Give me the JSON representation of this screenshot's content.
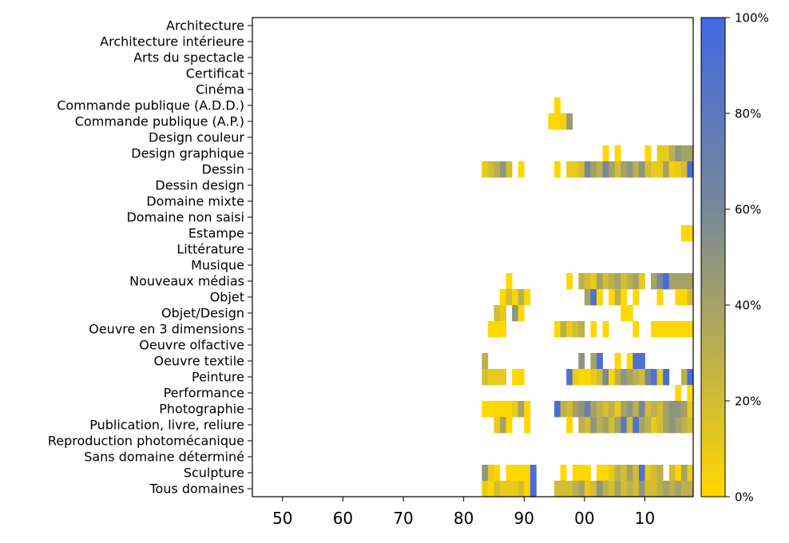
{
  "chart_data": {
    "type": "heatmap",
    "xlim": [
      1945,
      2018
    ],
    "x_tick_values": [
      1950,
      1960,
      1970,
      1980,
      1990,
      2000,
      2010
    ],
    "x_tick_labels": [
      "50",
      "60",
      "70",
      "80",
      "90",
      "00",
      "10"
    ],
    "categories": [
      "Architecture",
      "Architecture intérieure",
      "Arts du spectacle",
      "Certificat",
      "Cinéma",
      "Commande publique (A.D.D.)",
      "Commande publique (A.P.)",
      "Design couleur",
      "Design graphique",
      "Dessin",
      "Dessin design",
      "Domaine mixte",
      "Domaine non saisi",
      "Estampe",
      "Littérature",
      "Musique",
      "Nouveaux médias",
      "Objet",
      "Objet/Design",
      "Oeuvre en 3 dimensions",
      "Oeuvre olfactive",
      "Oeuvre textile",
      "Peinture",
      "Performance",
      "Photographie",
      "Publication, livre, reliure",
      "Reproduction photomécanique",
      "Sans domaine déterminé",
      "Sculpture",
      "Tous domaines"
    ],
    "colorbar": {
      "min_color": "#FFD700",
      "mid_color": "#778899",
      "max_color": "#4169E1",
      "tick_values": [
        0,
        20,
        40,
        60,
        80,
        100
      ],
      "tick_labels": [
        "0%",
        "20%",
        "40%",
        "60%",
        "80%",
        "100%"
      ]
    },
    "cells": {
      "Commande publique (A.D.D.)": [
        [
          1995,
          0
        ]
      ],
      "Commande publique (A.P.)": [
        [
          1994,
          0
        ],
        [
          1995,
          0
        ],
        [
          1996,
          5
        ],
        [
          1997,
          45
        ]
      ],
      "Design graphique": [
        [
          2003,
          0
        ],
        [
          2005,
          0
        ],
        [
          2010,
          0
        ],
        [
          2012,
          10
        ],
        [
          2013,
          10
        ],
        [
          2014,
          30
        ],
        [
          2015,
          50
        ],
        [
          2016,
          40
        ],
        [
          2017,
          40
        ]
      ],
      "Dessin": [
        [
          1983,
          10
        ],
        [
          1984,
          20
        ],
        [
          1985,
          30
        ],
        [
          1986,
          50
        ],
        [
          1987,
          20
        ],
        [
          1989,
          0
        ],
        [
          1995,
          0
        ],
        [
          1997,
          10
        ],
        [
          1998,
          10
        ],
        [
          1999,
          20
        ],
        [
          2000,
          60
        ],
        [
          2001,
          40
        ],
        [
          2002,
          30
        ],
        [
          2003,
          60
        ],
        [
          2004,
          40
        ],
        [
          2005,
          20
        ],
        [
          2006,
          40
        ],
        [
          2007,
          50
        ],
        [
          2008,
          30
        ],
        [
          2009,
          50
        ],
        [
          2010,
          20
        ],
        [
          2011,
          10
        ],
        [
          2012,
          10
        ],
        [
          2013,
          40
        ],
        [
          2014,
          5
        ],
        [
          2015,
          10
        ],
        [
          2016,
          20
        ],
        [
          2017,
          95
        ]
      ],
      "Estampe": [
        [
          2016,
          0
        ],
        [
          2017,
          0
        ]
      ],
      "Nouveaux médias": [
        [
          1987,
          0
        ],
        [
          1997,
          0
        ],
        [
          1999,
          30
        ],
        [
          2000,
          20
        ],
        [
          2001,
          10
        ],
        [
          2002,
          40
        ],
        [
          2003,
          20
        ],
        [
          2004,
          30
        ],
        [
          2005,
          40
        ],
        [
          2006,
          20
        ],
        [
          2007,
          30
        ],
        [
          2008,
          40
        ],
        [
          2009,
          10
        ],
        [
          2011,
          40
        ],
        [
          2012,
          60
        ],
        [
          2013,
          95
        ],
        [
          2014,
          40
        ],
        [
          2015,
          40
        ],
        [
          2016,
          40
        ],
        [
          2017,
          40
        ]
      ],
      "Objet": [
        [
          1986,
          0
        ],
        [
          1987,
          20
        ],
        [
          1988,
          0
        ],
        [
          1989,
          30
        ],
        [
          1990,
          0
        ],
        [
          2000,
          40
        ],
        [
          2001,
          90
        ],
        [
          2002,
          0
        ],
        [
          2004,
          0
        ],
        [
          2005,
          30
        ],
        [
          2006,
          0
        ],
        [
          2008,
          0
        ],
        [
          2012,
          0
        ],
        [
          2015,
          0
        ],
        [
          2016,
          0
        ],
        [
          2017,
          20
        ]
      ],
      "Objet/Design": [
        [
          1985,
          20
        ],
        [
          1986,
          10
        ],
        [
          1988,
          50
        ],
        [
          1989,
          0
        ],
        [
          2006,
          0
        ],
        [
          2007,
          0
        ]
      ],
      "Oeuvre en 3 dimensions": [
        [
          1984,
          0
        ],
        [
          1985,
          0
        ],
        [
          1986,
          0
        ],
        [
          1995,
          0
        ],
        [
          1996,
          30
        ],
        [
          1997,
          10
        ],
        [
          1998,
          20
        ],
        [
          1999,
          30
        ],
        [
          2001,
          0
        ],
        [
          2003,
          0
        ],
        [
          2008,
          0
        ],
        [
          2011,
          0
        ],
        [
          2012,
          0
        ],
        [
          2013,
          0
        ],
        [
          2014,
          0
        ],
        [
          2015,
          0
        ],
        [
          2016,
          0
        ],
        [
          2017,
          0
        ]
      ],
      "Oeuvre textile": [
        [
          1983,
          30
        ],
        [
          1999,
          50
        ],
        [
          2001,
          40
        ],
        [
          2002,
          90
        ],
        [
          2005,
          0
        ],
        [
          2007,
          0
        ],
        [
          2008,
          90
        ],
        [
          2009,
          90
        ]
      ],
      "Peinture": [
        [
          1983,
          20
        ],
        [
          1984,
          10
        ],
        [
          1985,
          10
        ],
        [
          1986,
          10
        ],
        [
          1988,
          0
        ],
        [
          1989,
          0
        ],
        [
          1997,
          90
        ],
        [
          1998,
          10
        ],
        [
          1999,
          0
        ],
        [
          2000,
          0
        ],
        [
          2001,
          10
        ],
        [
          2002,
          20
        ],
        [
          2003,
          60
        ],
        [
          2004,
          0
        ],
        [
          2005,
          30
        ],
        [
          2006,
          50
        ],
        [
          2007,
          40
        ],
        [
          2008,
          30
        ],
        [
          2009,
          20
        ],
        [
          2010,
          60
        ],
        [
          2011,
          90
        ],
        [
          2012,
          10
        ],
        [
          2013,
          95
        ],
        [
          2016,
          30
        ],
        [
          2017,
          95
        ]
      ],
      "Performance": [
        [
          2015,
          0
        ],
        [
          2017,
          0
        ]
      ],
      "Photographie": [
        [
          1983,
          0
        ],
        [
          1984,
          0
        ],
        [
          1985,
          0
        ],
        [
          1986,
          0
        ],
        [
          1987,
          0
        ],
        [
          1988,
          10
        ],
        [
          1989,
          40
        ],
        [
          1990,
          0
        ],
        [
          1995,
          95
        ],
        [
          1996,
          30
        ],
        [
          1997,
          20
        ],
        [
          1998,
          40
        ],
        [
          1999,
          50
        ],
        [
          2000,
          70
        ],
        [
          2001,
          40
        ],
        [
          2002,
          30
        ],
        [
          2003,
          20
        ],
        [
          2004,
          30
        ],
        [
          2005,
          10
        ],
        [
          2006,
          40
        ],
        [
          2007,
          50
        ],
        [
          2008,
          30
        ],
        [
          2009,
          60
        ],
        [
          2010,
          20
        ],
        [
          2011,
          30
        ],
        [
          2012,
          20
        ],
        [
          2013,
          40
        ],
        [
          2014,
          50
        ],
        [
          2015,
          50
        ],
        [
          2016,
          40
        ],
        [
          2017,
          10
        ]
      ],
      "Publication, livre, reliure": [
        [
          1985,
          10
        ],
        [
          1986,
          40
        ],
        [
          1987,
          0
        ],
        [
          1990,
          0
        ],
        [
          1997,
          0
        ],
        [
          1999,
          30
        ],
        [
          2000,
          20
        ],
        [
          2001,
          50
        ],
        [
          2002,
          30
        ],
        [
          2003,
          40
        ],
        [
          2004,
          20
        ],
        [
          2005,
          40
        ],
        [
          2006,
          80
        ],
        [
          2007,
          20
        ],
        [
          2008,
          90
        ],
        [
          2009,
          40
        ],
        [
          2010,
          30
        ],
        [
          2011,
          10
        ],
        [
          2012,
          20
        ],
        [
          2013,
          40
        ],
        [
          2014,
          50
        ],
        [
          2015,
          40
        ],
        [
          2016,
          30
        ],
        [
          2017,
          20
        ]
      ],
      "Sculpture": [
        [
          1983,
          50
        ],
        [
          1984,
          10
        ],
        [
          1985,
          0
        ],
        [
          1987,
          0
        ],
        [
          1988,
          0
        ],
        [
          1989,
          0
        ],
        [
          1990,
          0
        ],
        [
          1991,
          95
        ],
        [
          1996,
          0
        ],
        [
          1998,
          0
        ],
        [
          1999,
          0
        ],
        [
          2000,
          0
        ],
        [
          2002,
          0
        ],
        [
          2003,
          0
        ],
        [
          2004,
          10
        ],
        [
          2005,
          30
        ],
        [
          2006,
          20
        ],
        [
          2007,
          40
        ],
        [
          2008,
          20
        ],
        [
          2009,
          90
        ],
        [
          2010,
          10
        ],
        [
          2011,
          20
        ],
        [
          2012,
          30
        ],
        [
          2014,
          20
        ],
        [
          2015,
          0
        ],
        [
          2016,
          40
        ],
        [
          2017,
          10
        ]
      ],
      "Tous domaines": [
        [
          1983,
          10
        ],
        [
          1984,
          0
        ],
        [
          1985,
          20
        ],
        [
          1986,
          10
        ],
        [
          1987,
          10
        ],
        [
          1988,
          10
        ],
        [
          1989,
          20
        ],
        [
          1990,
          0
        ],
        [
          1991,
          95
        ],
        [
          1995,
          20
        ],
        [
          1996,
          20
        ],
        [
          1997,
          20
        ],
        [
          1998,
          30
        ],
        [
          1999,
          40
        ],
        [
          2000,
          10
        ],
        [
          2001,
          20
        ],
        [
          2002,
          50
        ],
        [
          2003,
          30
        ],
        [
          2004,
          20
        ],
        [
          2005,
          40
        ],
        [
          2006,
          20
        ],
        [
          2007,
          30
        ],
        [
          2008,
          20
        ],
        [
          2009,
          50
        ],
        [
          2010,
          20
        ],
        [
          2011,
          20
        ],
        [
          2012,
          30
        ],
        [
          2013,
          40
        ],
        [
          2014,
          30
        ],
        [
          2015,
          40
        ],
        [
          2016,
          30
        ],
        [
          2017,
          30
        ]
      ]
    }
  }
}
